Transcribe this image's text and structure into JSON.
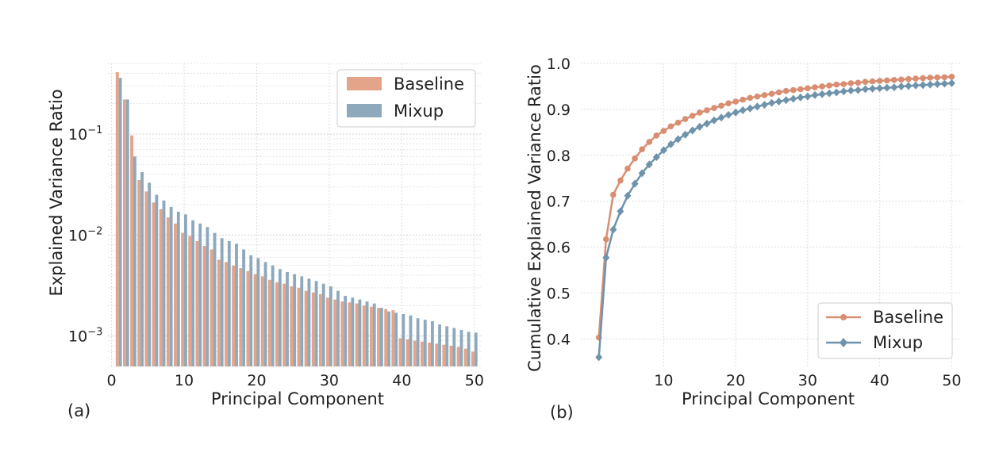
{
  "colors": {
    "baseline": "#e3a48a",
    "mixup": "#8fa9bc",
    "baseline_line": "#d98e72",
    "mixup_line": "#6e93ab"
  },
  "chart_data": [
    {
      "panel_label": "(a)",
      "type": "bar",
      "yscale": "log",
      "xlabel": "Principal Component",
      "ylabel": "Explained Variance Ratio",
      "xlim": [
        -0.5,
        51
      ],
      "ylim": [
        0.0005,
        0.5
      ],
      "xticks": [
        0,
        10,
        20,
        30,
        40,
        50
      ],
      "yticks": [
        {
          "value": 0.1,
          "base": "10",
          "exp": "−1"
        },
        {
          "value": 0.01,
          "base": "10",
          "exp": "−2"
        },
        {
          "value": 0.001,
          "base": "10",
          "exp": "−3"
        }
      ],
      "grid": true,
      "legend_position": "top-right",
      "x": [
        1,
        2,
        3,
        4,
        5,
        6,
        7,
        8,
        9,
        10,
        11,
        12,
        13,
        14,
        15,
        16,
        17,
        18,
        19,
        20,
        21,
        22,
        23,
        24,
        25,
        26,
        27,
        28,
        29,
        30,
        31,
        32,
        33,
        34,
        35,
        36,
        37,
        38,
        39,
        40,
        41,
        42,
        43,
        44,
        45,
        46,
        47,
        48,
        49,
        50
      ],
      "series": [
        {
          "name": "Baseline",
          "values": [
            0.41,
            0.22,
            0.097,
            0.035,
            0.027,
            0.021,
            0.018,
            0.015,
            0.013,
            0.0105,
            0.0098,
            0.0087,
            0.0078,
            0.0072,
            0.0057,
            0.0054,
            0.005,
            0.0047,
            0.0044,
            0.0041,
            0.0039,
            0.0036,
            0.0034,
            0.0033,
            0.0031,
            0.003,
            0.0028,
            0.0027,
            0.0026,
            0.0024,
            0.0023,
            0.0022,
            0.00215,
            0.0021,
            0.002,
            0.00195,
            0.0019,
            0.00185,
            0.0018,
            0.00095,
            0.00093,
            0.0009,
            0.00088,
            0.00086,
            0.00084,
            0.00082,
            0.0008,
            0.00078,
            0.00075,
            0.0007
          ]
        },
        {
          "name": "Mixup",
          "values": [
            0.36,
            0.22,
            0.06,
            0.042,
            0.033,
            0.025,
            0.022,
            0.019,
            0.017,
            0.016,
            0.014,
            0.013,
            0.012,
            0.0105,
            0.0093,
            0.0087,
            0.0082,
            0.0072,
            0.0063,
            0.0059,
            0.0054,
            0.005,
            0.0046,
            0.0043,
            0.0041,
            0.0039,
            0.0037,
            0.0035,
            0.0033,
            0.0031,
            0.0028,
            0.0025,
            0.0024,
            0.0023,
            0.0022,
            0.0021,
            0.0019,
            0.00175,
            0.0017,
            0.00165,
            0.0016,
            0.0015,
            0.00145,
            0.0014,
            0.0013,
            0.00125,
            0.0012,
            0.00115,
            0.0011,
            0.00108
          ]
        }
      ]
    },
    {
      "panel_label": "(b)",
      "type": "line",
      "xlabel": "Principal Component",
      "ylabel": "Cumulative Explained Variance Ratio",
      "xlim": [
        -1.5,
        51.5
      ],
      "ylim": [
        0.34,
        1.0
      ],
      "xticks": [
        10,
        20,
        30,
        40,
        50
      ],
      "yticks": [
        0.4,
        0.5,
        0.6,
        0.7,
        0.8,
        0.9,
        1.0
      ],
      "ytick_labels": [
        "0.4",
        "0.5",
        "0.6",
        "0.7",
        "0.8",
        "0.9",
        "1.0"
      ],
      "grid": true,
      "legend_position": "bottom-right",
      "x": [
        1,
        2,
        3,
        4,
        5,
        6,
        7,
        8,
        9,
        10,
        11,
        12,
        13,
        14,
        15,
        16,
        17,
        18,
        19,
        20,
        21,
        22,
        23,
        24,
        25,
        26,
        27,
        28,
        29,
        30,
        31,
        32,
        33,
        34,
        35,
        36,
        37,
        38,
        39,
        40,
        41,
        42,
        43,
        44,
        45,
        46,
        47,
        48,
        49,
        50
      ],
      "series": [
        {
          "name": "Baseline",
          "marker": "circle",
          "values": [
            0.403,
            0.617,
            0.714,
            0.745,
            0.771,
            0.793,
            0.813,
            0.829,
            0.843,
            0.853,
            0.863,
            0.871,
            0.879,
            0.886,
            0.893,
            0.898,
            0.903,
            0.908,
            0.913,
            0.917,
            0.921,
            0.925,
            0.928,
            0.931,
            0.934,
            0.937,
            0.94,
            0.942,
            0.944,
            0.946,
            0.948,
            0.95,
            0.952,
            0.954,
            0.955,
            0.957,
            0.958,
            0.96,
            0.961,
            0.962,
            0.963,
            0.964,
            0.965,
            0.966,
            0.967,
            0.968,
            0.969,
            0.9695,
            0.97,
            0.971
          ]
        },
        {
          "name": "Mixup",
          "marker": "diamond",
          "values": [
            0.36,
            0.577,
            0.638,
            0.678,
            0.712,
            0.738,
            0.761,
            0.78,
            0.796,
            0.811,
            0.824,
            0.835,
            0.845,
            0.854,
            0.862,
            0.869,
            0.876,
            0.882,
            0.888,
            0.893,
            0.898,
            0.902,
            0.906,
            0.91,
            0.914,
            0.917,
            0.92,
            0.923,
            0.926,
            0.928,
            0.931,
            0.933,
            0.935,
            0.937,
            0.939,
            0.941,
            0.942,
            0.944,
            0.945,
            0.946,
            0.947,
            0.948,
            0.95,
            0.951,
            0.952,
            0.953,
            0.954,
            0.955,
            0.956,
            0.957
          ]
        }
      ]
    }
  ]
}
